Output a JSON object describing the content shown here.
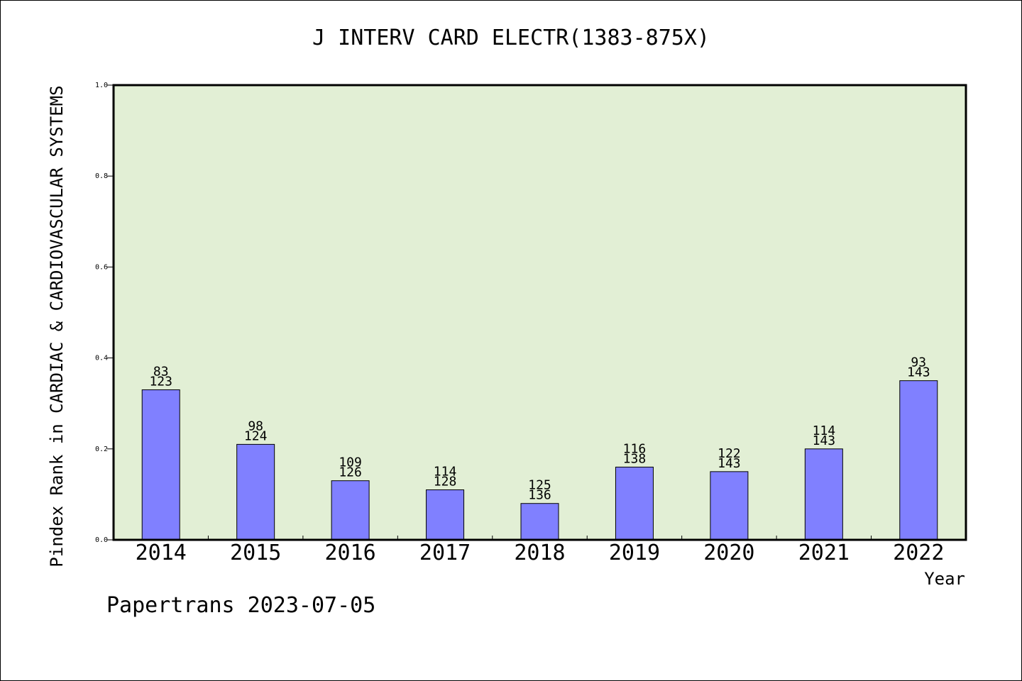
{
  "chart_data": {
    "type": "bar",
    "title": "J INTERV CARD ELECTR(1383-875X)",
    "xlabel": "Year",
    "ylabel": "Pindex Rank in CARDIAC & CARDIOVASCULAR SYSTEMS",
    "categories": [
      "2014",
      "2015",
      "2016",
      "2017",
      "2018",
      "2019",
      "2020",
      "2021",
      "2022"
    ],
    "series": [
      {
        "values": [
          0.33,
          0.21,
          0.13,
          0.11,
          0.08,
          0.16,
          0.15,
          0.2,
          0.35
        ]
      }
    ],
    "label_rank": [
      "83",
      "98",
      "109",
      "114",
      "125",
      "116",
      "122",
      "114",
      "93"
    ],
    "label_total": [
      "123",
      "124",
      "126",
      "128",
      "136",
      "138",
      "143",
      "143",
      "143"
    ],
    "ylim": [
      0,
      1.0
    ],
    "yticks": [
      "0.0",
      "0.2",
      "0.4",
      "0.6",
      "0.8",
      "1.0"
    ],
    "grid": false,
    "colors": {
      "plot_background": "#e2efd5",
      "bar_fill": "#8080ff",
      "bar_stroke": "#000000"
    }
  },
  "footer": {
    "credit": "Papertrans 2023-07-05"
  }
}
